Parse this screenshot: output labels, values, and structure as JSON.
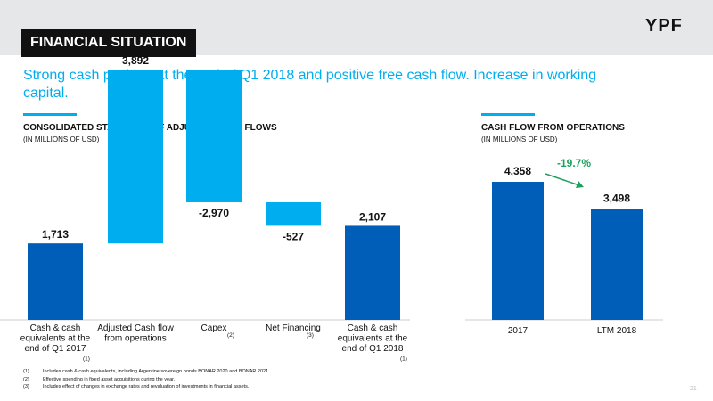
{
  "header": {
    "title": "FINANCIAL SITUATION",
    "logo": "YPF"
  },
  "subtitle": "Strong cash position at the end of Q1 2018 and positive free cash flow. Increase in working capital.",
  "colors": {
    "accent": "#00aeef",
    "dark_blue": "#005eb8",
    "light_blue": "#00aeef",
    "title_bg": "#111111",
    "band": "#e6e7e8",
    "arrow_green": "#1ea160"
  },
  "left_section": {
    "title": "CONSOLIDATED STATEMENT OF ADJUSTED CASH FLOWS",
    "unit": "(IN MILLIONS OF USD)"
  },
  "right_section": {
    "title": "CASH FLOW FROM OPERATIONS",
    "unit": "(IN MILLIONS OF USD)"
  },
  "chart_data": [
    {
      "type": "bar",
      "subtype": "waterfall",
      "categories": [
        {
          "lines": [
            "Cash & cash",
            "equivalents at the",
            "end of Q1 2017"
          ],
          "note": "(1)"
        },
        {
          "lines": [
            "Adjusted Cash flow",
            "from operations"
          ],
          "note": ""
        },
        {
          "lines": [
            "Capex"
          ],
          "note": "(2)"
        },
        {
          "lines": [
            "Net Financing"
          ],
          "note": "(3)"
        },
        {
          "lines": [
            "Cash & cash",
            "equivalents at the",
            "end of Q1 2018"
          ],
          "note": "(1)"
        }
      ],
      "values": [
        1713,
        3892,
        -2970,
        -527,
        2107
      ],
      "labels": [
        "1,713",
        "3,892",
        "-2,970",
        "-527",
        "2,107"
      ],
      "kinds": [
        "total",
        "delta",
        "delta",
        "delta",
        "total"
      ]
    },
    {
      "type": "bar",
      "categories": [
        "2017",
        "LTM 2018"
      ],
      "values": [
        4358,
        3498
      ],
      "labels": [
        "4,358",
        "3,498"
      ],
      "annotation": "-19.7%"
    }
  ],
  "footnotes": [
    {
      "num": "(1)",
      "text": "Includes cash & cash equivalents, including Argentine sovereign bonds BONAR 2020 and BONAR 2021."
    },
    {
      "num": "(2)",
      "text": "Effective spending in fixed asset acquisitions during the year."
    },
    {
      "num": "(3)",
      "text": "Includes effect of changes in exchange rates and revaluation of investments in financial assets."
    }
  ],
  "page_number": "21"
}
